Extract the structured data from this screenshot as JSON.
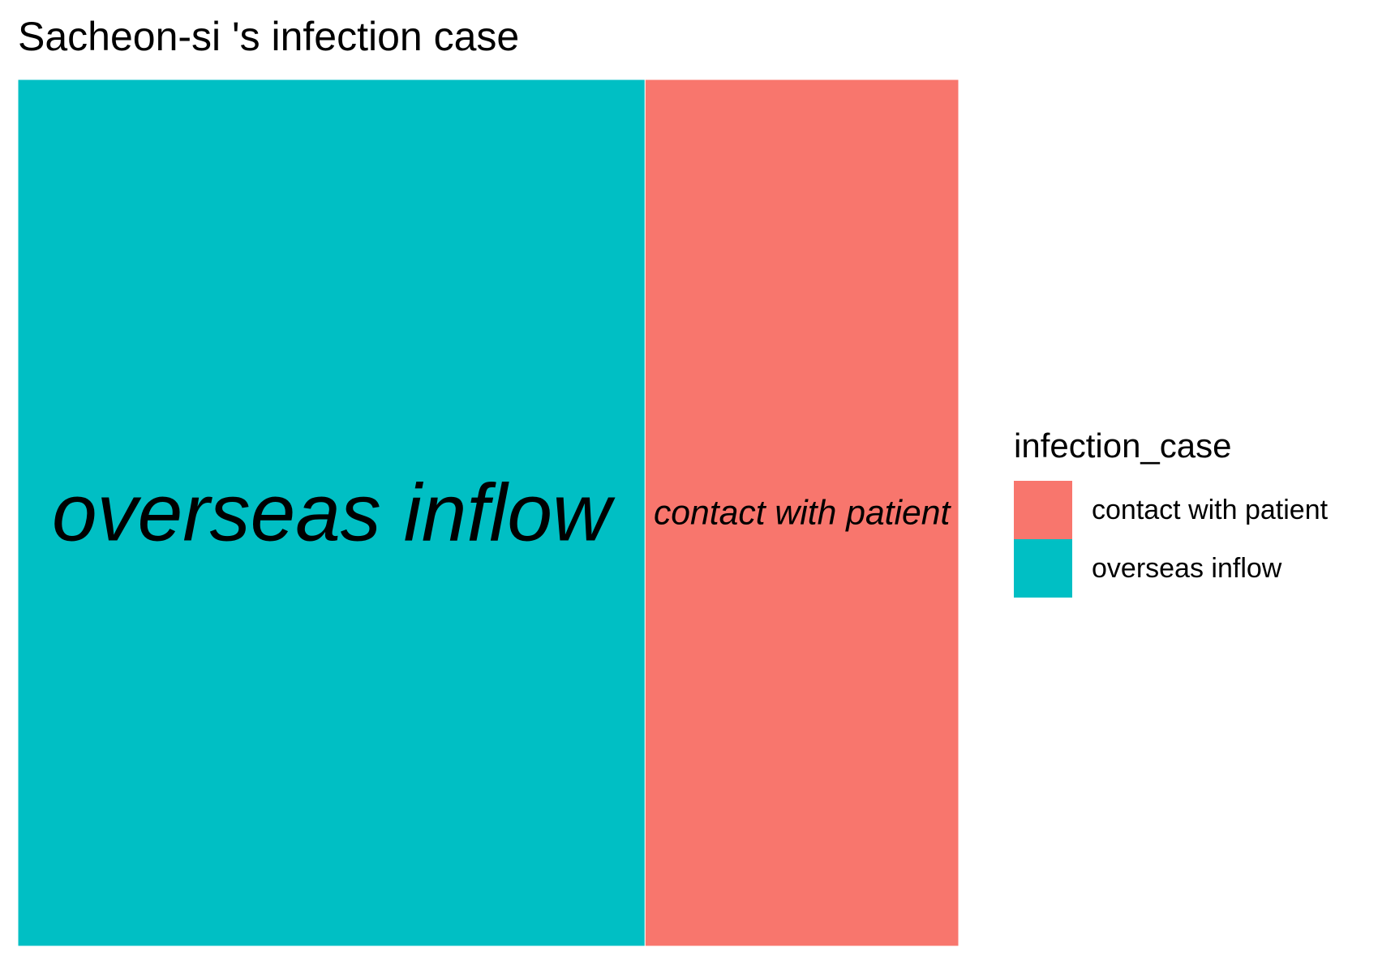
{
  "chart_data": {
    "type": "treemap",
    "title": "Sacheon-si 's infection case",
    "categories": [
      "overseas inflow",
      "contact with patient"
    ],
    "values": [
      2,
      1
    ],
    "colors": {
      "overseas inflow": "#00BFC4",
      "contact with patient": "#F8766D"
    },
    "legend": {
      "title": "infection_case",
      "placement": "right",
      "entries": [
        {
          "label": "contact with patient",
          "color": "#F8766D"
        },
        {
          "label": "overseas inflow",
          "color": "#00BFC4"
        }
      ]
    }
  }
}
